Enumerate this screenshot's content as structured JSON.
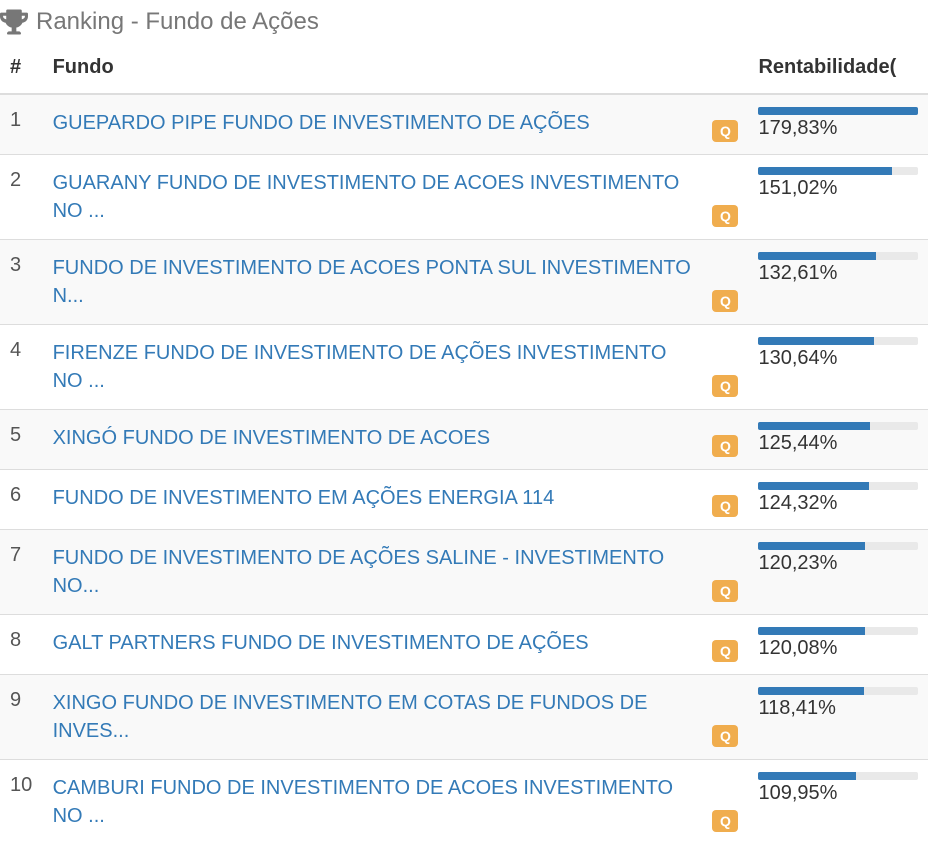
{
  "header": {
    "title": "Ranking - Fundo de Ações"
  },
  "table": {
    "columns": {
      "rank": "#",
      "fund": "Fundo",
      "return": "Rentabilidade("
    },
    "badge_label": "Q",
    "bar_max_value": 179.83,
    "bar_color": "#337ab7",
    "bar_track_color": "#e9e9e9",
    "link_color": "#337ab7",
    "rows": [
      {
        "rank": "1",
        "fund": "GUEPARDO PIPE FUNDO DE INVESTIMENTO DE AÇÕES",
        "return_text": "179,83%",
        "return_value": 179.83
      },
      {
        "rank": "2",
        "fund": "GUARANY FUNDO DE INVESTIMENTO DE ACOES INVESTIMENTO NO ...",
        "return_text": "151,02%",
        "return_value": 151.02
      },
      {
        "rank": "3",
        "fund": "FUNDO DE INVESTIMENTO DE ACOES PONTA SUL INVESTIMENTO N...",
        "return_text": "132,61%",
        "return_value": 132.61
      },
      {
        "rank": "4",
        "fund": "FIRENZE FUNDO DE INVESTIMENTO DE AÇÕES INVESTIMENTO NO ...",
        "return_text": "130,64%",
        "return_value": 130.64
      },
      {
        "rank": "5",
        "fund": "XINGÓ FUNDO DE INVESTIMENTO DE ACOES",
        "return_text": "125,44%",
        "return_value": 125.44
      },
      {
        "rank": "6",
        "fund": "FUNDO DE INVESTIMENTO EM AÇÕES ENERGIA 114",
        "return_text": "124,32%",
        "return_value": 124.32
      },
      {
        "rank": "7",
        "fund": "FUNDO DE INVESTIMENTO DE AÇÕES SALINE - INVESTIMENTO NO...",
        "return_text": "120,23%",
        "return_value": 120.23
      },
      {
        "rank": "8",
        "fund": "GALT PARTNERS FUNDO DE INVESTIMENTO DE AÇÕES",
        "return_text": "120,08%",
        "return_value": 120.08
      },
      {
        "rank": "9",
        "fund": "XINGO FUNDO DE INVESTIMENTO EM COTAS DE FUNDOS DE INVES...",
        "return_text": "118,41%",
        "return_value": 118.41
      },
      {
        "rank": "10",
        "fund": "CAMBURI FUNDO DE INVESTIMENTO DE ACOES INVESTIMENTO NO ...",
        "return_text": "109,95%",
        "return_value": 109.95
      }
    ]
  }
}
